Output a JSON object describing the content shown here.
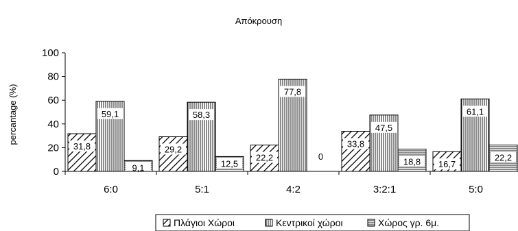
{
  "chart_data": {
    "type": "bar",
    "title": "Απόκρουση",
    "xlabel": "",
    "ylabel": "percantage (%)",
    "ylim": [
      0,
      100
    ],
    "yticks": [
      0,
      20,
      40,
      60,
      80,
      100
    ],
    "grid": false,
    "legend_position": "bottom",
    "categories": [
      "6:0",
      "5:1",
      "4:2",
      "3:2:1",
      "5:0"
    ],
    "series": [
      {
        "name": "Πλάγιοι Χώροι",
        "pattern": "diagonal-hatch",
        "values": [
          31.8,
          29.2,
          22.2,
          33.8,
          16.7
        ],
        "labels": [
          "31,8",
          "29,2",
          "22,2",
          "33,8",
          "16,7"
        ]
      },
      {
        "name": "Κεντρικοί χώροι",
        "pattern": "vertical-lines",
        "values": [
          59.1,
          58.3,
          77.8,
          47.5,
          61.1
        ],
        "labels": [
          "59,1",
          "58,3",
          "77,8",
          "47,5",
          "61,1"
        ]
      },
      {
        "name": "Χώρος γρ. 6μ.",
        "pattern": "horizontal-lines",
        "values": [
          9.1,
          12.5,
          0,
          18.8,
          22.2
        ],
        "labels": [
          "9,1",
          "12,5",
          "0",
          "18,8",
          "22,2"
        ]
      }
    ]
  }
}
